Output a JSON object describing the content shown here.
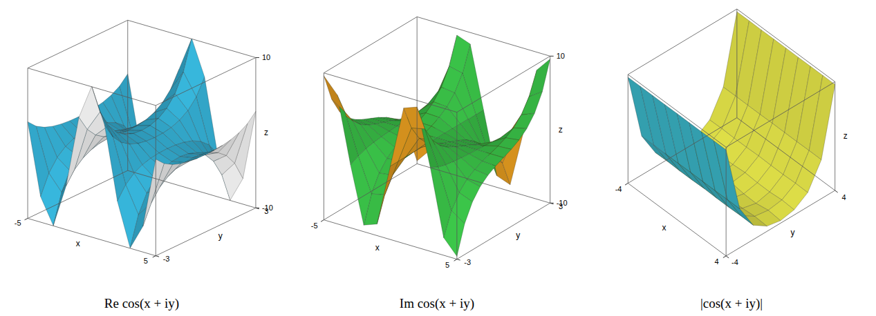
{
  "chart_data": [
    {
      "type": "surface",
      "title": "Re cos(x + iy)",
      "xlabel": "x",
      "ylabel": "y",
      "zlabel": "z",
      "x": [
        -5,
        -4,
        -3,
        -2,
        -1,
        0,
        1,
        2,
        3,
        4,
        5
      ],
      "y": [
        -3,
        -2.5,
        -2,
        -1.5,
        -1,
        -0.5,
        0,
        0.5,
        1,
        1.5,
        2,
        2.5,
        3
      ],
      "z": [
        [
          2.86,
          -6.58,
          -9.97,
          -4.19,
          5.44,
          10.07,
          5.44,
          -4.19,
          -9.97,
          -6.58,
          2.86
        ],
        [
          1.74,
          -4.01,
          -6.07,
          -2.55,
          3.31,
          6.13,
          3.31,
          -2.55,
          -6.07,
          -4.01,
          1.74
        ],
        [
          1.07,
          -2.46,
          -3.72,
          -1.57,
          2.03,
          3.76,
          2.03,
          -1.57,
          -3.72,
          -2.46,
          1.07
        ],
        [
          0.67,
          -1.54,
          -2.33,
          -0.98,
          1.27,
          2.35,
          1.27,
          -0.98,
          -2.33,
          -1.54,
          0.67
        ],
        [
          0.44,
          -1.01,
          -1.53,
          -0.64,
          0.83,
          1.54,
          0.83,
          -0.64,
          -1.53,
          -1.01,
          0.44
        ],
        [
          0.32,
          -0.74,
          -1.12,
          -0.47,
          0.61,
          1.13,
          0.61,
          -0.47,
          -1.12,
          -0.74,
          0.32
        ],
        [
          0.28,
          -0.65,
          -0.99,
          -0.42,
          0.54,
          1,
          0.54,
          -0.42,
          -0.99,
          -0.65,
          0.28
        ],
        [
          0.32,
          -0.74,
          -1.12,
          -0.47,
          0.61,
          1.13,
          0.61,
          -0.47,
          -1.12,
          -0.74,
          0.32
        ],
        [
          0.44,
          -1.01,
          -1.53,
          -0.64,
          0.83,
          1.54,
          0.83,
          -0.64,
          -1.53,
          -1.01,
          0.44
        ],
        [
          0.67,
          -1.54,
          -2.33,
          -0.98,
          1.27,
          2.35,
          1.27,
          -0.98,
          -2.33,
          -1.54,
          0.67
        ],
        [
          1.07,
          -2.46,
          -3.72,
          -1.57,
          2.03,
          3.76,
          2.03,
          -1.57,
          -3.72,
          -2.46,
          1.07
        ],
        [
          1.74,
          -4.01,
          -6.07,
          -2.55,
          3.31,
          6.13,
          3.31,
          -2.55,
          -6.07,
          -4.01,
          1.74
        ],
        [
          2.86,
          -6.58,
          -9.97,
          -4.19,
          5.44,
          10.07,
          5.44,
          -4.19,
          -9.97,
          -6.58,
          2.86
        ]
      ],
      "xlim": [
        -5,
        5
      ],
      "ylim": [
        -3,
        3
      ],
      "zlim": [
        -10,
        10
      ],
      "xticks": [
        -5,
        5
      ],
      "yticks": [
        -3,
        3
      ],
      "zticks": [
        -10,
        10
      ]
    },
    {
      "type": "surface",
      "title": "Im cos(x + iy)",
      "xlabel": "x",
      "ylabel": "y",
      "zlabel": "z",
      "x": [
        -5,
        -4,
        -3,
        -2,
        -1,
        0,
        1,
        2,
        3,
        4,
        5
      ],
      "y": [
        -3,
        -2.5,
        -2,
        -1.5,
        -1,
        -0.5,
        0,
        0.5,
        1,
        1.5,
        2,
        2.5,
        3
      ],
      "z": [
        [
          9.61,
          7.58,
          -1.41,
          -9.11,
          -8.43,
          0,
          8.43,
          9.11,
          1.41,
          -7.58,
          -9.61
        ],
        [
          5.8,
          4.58,
          -0.85,
          -5.5,
          -5.09,
          0,
          5.09,
          5.5,
          0.85,
          -4.58,
          -5.8
        ],
        [
          3.48,
          2.75,
          -0.51,
          -3.3,
          -3.05,
          0,
          3.05,
          3.3,
          0.51,
          -2.75,
          -3.48
        ],
        [
          2.04,
          1.61,
          -0.3,
          -1.94,
          -1.79,
          0,
          1.79,
          1.94,
          0.3,
          -1.61,
          -2.04
        ],
        [
          1.13,
          0.89,
          -0.17,
          -1.07,
          -0.99,
          0,
          0.99,
          1.07,
          0.17,
          -0.89,
          -1.13
        ],
        [
          0.5,
          0.39,
          -0.07,
          -0.47,
          -0.44,
          0,
          0.44,
          0.47,
          0.07,
          -0.39,
          -0.5
        ],
        [
          0,
          0,
          0,
          0,
          0,
          0,
          0,
          0,
          0,
          0,
          0
        ],
        [
          -0.5,
          -0.39,
          0.07,
          0.47,
          0.44,
          0,
          -0.44,
          -0.47,
          -0.07,
          0.39,
          0.5
        ],
        [
          -1.13,
          -0.89,
          0.17,
          1.07,
          0.99,
          0,
          -0.99,
          -1.07,
          -0.17,
          0.89,
          1.13
        ],
        [
          -2.04,
          -1.61,
          0.3,
          1.94,
          1.79,
          0,
          -1.79,
          -1.94,
          -0.3,
          1.61,
          2.04
        ],
        [
          -3.48,
          -2.75,
          0.51,
          3.3,
          3.05,
          0,
          -3.05,
          -3.3,
          -0.51,
          2.75,
          3.48
        ],
        [
          -5.8,
          -4.58,
          0.85,
          5.5,
          5.09,
          0,
          -5.09,
          -5.5,
          -0.85,
          4.58,
          5.8
        ],
        [
          -9.61,
          -7.58,
          1.41,
          9.11,
          8.43,
          0,
          -8.43,
          -9.11,
          -1.41,
          7.58,
          9.61
        ]
      ],
      "xlim": [
        -5,
        5
      ],
      "ylim": [
        -3,
        3
      ],
      "zlim": [
        -10,
        10
      ],
      "xticks": [
        -5,
        5
      ],
      "yticks": [
        -3,
        3
      ],
      "zticks": [
        -10,
        10
      ]
    },
    {
      "type": "surface",
      "title": "|cos(x + iy)|",
      "xlabel": "x",
      "ylabel": "y",
      "zlabel": "z",
      "x": [
        -4,
        -3,
        -2,
        -1,
        0,
        1,
        2,
        3,
        4
      ],
      "y": [
        -4,
        -3,
        -2,
        -1,
        0,
        1,
        2,
        3,
        4
      ],
      "z": [
        [
          27.3,
          27.31,
          27.29,
          27.29,
          27.31,
          27.29,
          27.29,
          27.31,
          27.3
        ],
        [
          10.04,
          10.07,
          10.03,
          10.03,
          10.07,
          10.03,
          10.03,
          10.07,
          10.04
        ],
        [
          3.69,
          3.76,
          3.65,
          3.67,
          3.76,
          3.67,
          3.65,
          3.76,
          3.69
        ],
        [
          1.34,
          1.54,
          1.25,
          1.29,
          1.54,
          1.29,
          1.25,
          1.54,
          1.34
        ],
        [
          0.65,
          0.99,
          0.42,
          0.54,
          1,
          0.54,
          0.42,
          0.99,
          0.65
        ],
        [
          1.34,
          1.54,
          1.25,
          1.29,
          1.54,
          1.29,
          1.25,
          1.54,
          1.34
        ],
        [
          3.69,
          3.76,
          3.65,
          3.67,
          3.76,
          3.67,
          3.65,
          3.76,
          3.69
        ],
        [
          10.04,
          10.07,
          10.03,
          10.03,
          10.07,
          10.03,
          10.03,
          10.07,
          10.04
        ],
        [
          27.3,
          27.31,
          27.29,
          27.29,
          27.31,
          27.29,
          27.29,
          27.31,
          27.3
        ]
      ],
      "xlim": [
        -4,
        4
      ],
      "ylim": [
        -4,
        4
      ],
      "zlim": [
        0,
        28
      ],
      "xticks": [
        -4,
        4
      ],
      "yticks": [
        -4,
        4
      ]
    }
  ]
}
